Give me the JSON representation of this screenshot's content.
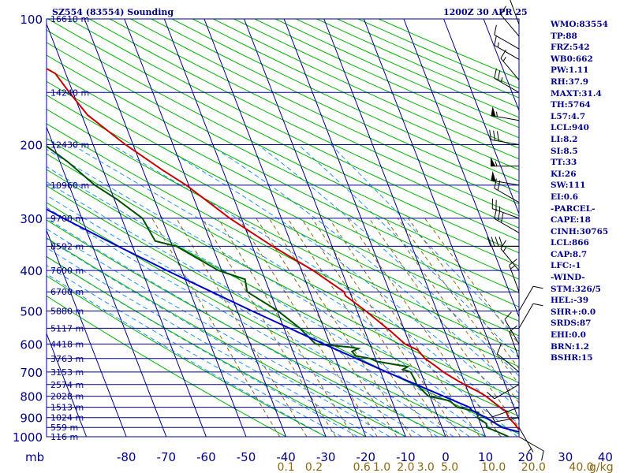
{
  "header": {
    "title": "SZ554 (83554) Sounding",
    "datetime": "1200Z 30 APR 25"
  },
  "indices": [
    "WMO:83554",
    "TP:88",
    "FRZ:542",
    "WB0:662",
    "PW:1.11",
    "RH:37.9",
    "MAXT:31.4",
    "TH:5764",
    "L57:4.7",
    "LCL:940",
    "LI:8.2",
    "SI:8.5",
    "TT:33",
    "KI:26",
    "SW:111",
    "EI:0.6",
    "-PARCEL-",
    "CAPE:18",
    "CINH:30765",
    "LCL:866",
    "CAP:8.7",
    "LFC:-1",
    "-WIND-",
    "STM:326/5",
    "HEL:-39",
    "SHR+:0.0",
    "SRDS:87",
    "EHI:0.0",
    "BRN:1.2",
    "BSHR:15"
  ],
  "colors": {
    "grid": "#00008b",
    "isotherm": "#00008b",
    "dry_adiabat": "#00b400",
    "moist_adiabat": "#1e90ff",
    "mixing_ratio": "#8b6914",
    "temperature": "#c80000",
    "dewpoint": "#005000",
    "parcel": "#0000c8",
    "axis_text": "#00008b",
    "mixing_text": "#8b6914"
  },
  "chart_data": {
    "type": "line",
    "title": "SZ554 (83554) Sounding",
    "pressure_label": "mb",
    "temperature_unit": "",
    "mixing_ratio_unit": "g/kg",
    "pressure_ticks": [
      100,
      200,
      300,
      400,
      500,
      600,
      700,
      800,
      900,
      1000
    ],
    "temperature_ticks": [
      -80,
      -70,
      -60,
      -50,
      -40,
      -30,
      -20,
      -10,
      0,
      10,
      20,
      30,
      40
    ],
    "temperature_tick_labels": [
      "-80",
      "-70",
      "-60",
      "-50",
      "-40",
      "-30",
      "-20",
      "-10",
      "0",
      "10",
      "20",
      "30",
      "40"
    ],
    "mixing_ratio_labels": [
      {
        "label": "0.1",
        "t": -40
      },
      {
        "label": "0.2",
        "t": -33
      },
      {
        "label": "0.6",
        "t": -21
      },
      {
        "label": "1.0",
        "t": -16
      },
      {
        "label": "2.0",
        "t": -10
      },
      {
        "label": "3.0",
        "t": -5
      },
      {
        "label": "5.0",
        "t": 1
      },
      {
        "label": "10.0",
        "t": 12
      },
      {
        "label": "20.0",
        "t": 22
      },
      {
        "label": "40.0",
        "t": 34
      },
      {
        "label": "g/kg",
        "t": 39
      }
    ],
    "height_labels": [
      {
        "p": 100,
        "label": "16610 m"
      },
      {
        "p": 150,
        "label": "14240 m"
      },
      {
        "p": 200,
        "label": "12430 m"
      },
      {
        "p": 250,
        "label": "10960 m"
      },
      {
        "p": 300,
        "label": "9700 m"
      },
      {
        "p": 350,
        "label": "8592 m"
      },
      {
        "p": 400,
        "label": "7600 m"
      },
      {
        "p": 450,
        "label": "6700 m"
      },
      {
        "p": 500,
        "label": "5880 m"
      },
      {
        "p": 550,
        "label": "5117 m"
      },
      {
        "p": 600,
        "label": "4418 m"
      },
      {
        "p": 650,
        "label": "3763 m"
      },
      {
        "p": 700,
        "label": "3153 m"
      },
      {
        "p": 750,
        "label": "2574 m"
      },
      {
        "p": 800,
        "label": "2028 m"
      },
      {
        "p": 850,
        "label": "1513 m"
      },
      {
        "p": 900,
        "label": "1024 m"
      },
      {
        "p": 950,
        "label": "559 m"
      },
      {
        "p": 1000,
        "label": "116 m"
      }
    ],
    "series": [
      {
        "name": "Temperature",
        "points": [
          [
            1000,
            20.8
          ],
          [
            960,
            19
          ],
          [
            930,
            18.5
          ],
          [
            900,
            17.6
          ],
          [
            870,
            17.6
          ],
          [
            850,
            16.5
          ],
          [
            800,
            14
          ],
          [
            780,
            12.6
          ],
          [
            750,
            9.7
          ],
          [
            720,
            7.3
          ],
          [
            700,
            5.7
          ],
          [
            680,
            4.5
          ],
          [
            650,
            2.4
          ],
          [
            620,
            1.4
          ],
          [
            600,
            -1.2
          ],
          [
            560,
            -3.5
          ],
          [
            500,
            -7.8
          ],
          [
            460,
            -11.4
          ],
          [
            450,
            -11.4
          ],
          [
            400,
            -17.1
          ],
          [
            350,
            -24.9
          ],
          [
            300,
            -32.9
          ],
          [
            250,
            -40.6
          ],
          [
            230,
            -45.1
          ],
          [
            200,
            -51.9
          ],
          [
            170,
            -58.5
          ],
          [
            150,
            -60.9
          ],
          [
            135,
            -62.6
          ],
          [
            130,
            -65.1
          ],
          [
            110,
            -73.1
          ],
          [
            103,
            -76.5
          ],
          [
            100,
            -77.5
          ]
        ]
      },
      {
        "name": "Dewpoint",
        "points": [
          [
            1000,
            15.8
          ],
          [
            970,
            13.2
          ],
          [
            950,
            11.2
          ],
          [
            930,
            11.5
          ],
          [
            900,
            9.8
          ],
          [
            875,
            10.6
          ],
          [
            860,
            8.1
          ],
          [
            850,
            5.7
          ],
          [
            820,
            4.5
          ],
          [
            800,
            -0.4
          ],
          [
            750,
            -2.2
          ],
          [
            730,
            -2.2
          ],
          [
            700,
            -2.5
          ],
          [
            690,
            -4.2
          ],
          [
            680,
            -2.7
          ],
          [
            660,
            -10
          ],
          [
            650,
            -11.3
          ],
          [
            640,
            -14.7
          ],
          [
            625,
            -15.2
          ],
          [
            615,
            -13.3
          ],
          [
            610,
            -15.5
          ],
          [
            600,
            -23.6
          ],
          [
            550,
            -26
          ],
          [
            500,
            -29.8
          ],
          [
            450,
            -35.7
          ],
          [
            420,
            -35
          ],
          [
            400,
            -40.8
          ],
          [
            350,
            -49
          ],
          [
            340,
            -53.8
          ],
          [
            300,
            -54.8
          ],
          [
            270,
            -59.4
          ],
          [
            250,
            -63.5
          ],
          [
            220,
            -68
          ],
          [
            200,
            -72.2
          ],
          [
            180,
            -75.5
          ],
          [
            170,
            -79.8
          ]
        ]
      },
      {
        "name": "Parcel",
        "points": [
          [
            1000,
            23
          ],
          [
            950,
            15
          ],
          [
            900,
            12
          ],
          [
            866,
            9.2
          ],
          [
            850,
            8.8
          ],
          [
            800,
            3.4
          ],
          [
            750,
            -2.3
          ],
          [
            700,
            -8.5
          ],
          [
            650,
            -14.8
          ],
          [
            600,
            -21.5
          ],
          [
            550,
            -28.6
          ],
          [
            500,
            -36.3
          ],
          [
            450,
            -44.6
          ],
          [
            400,
            -53.7
          ],
          [
            350,
            -63.6
          ],
          [
            300,
            -74.6
          ],
          [
            250,
            -86.9
          ],
          [
            200,
            -101
          ],
          [
            150,
            -117.7
          ],
          [
            120,
            -130
          ],
          [
            110,
            -135
          ]
        ]
      }
    ],
    "wind_barbs": [
      {
        "p": 103,
        "dir": 340,
        "kt": 10
      },
      {
        "p": 110,
        "dir": 320,
        "kt": 10
      },
      {
        "p": 118,
        "dir": 300,
        "kt": 10
      },
      {
        "p": 125,
        "dir": 300,
        "kt": 15
      },
      {
        "p": 140,
        "dir": 320,
        "kt": 15
      },
      {
        "p": 150,
        "dir": 300,
        "kt": 25
      },
      {
        "p": 175,
        "dir": 280,
        "kt": 55
      },
      {
        "p": 200,
        "dir": 280,
        "kt": 30
      },
      {
        "p": 225,
        "dir": 270,
        "kt": 55
      },
      {
        "p": 250,
        "dir": 280,
        "kt": 50
      },
      {
        "p": 275,
        "dir": 300,
        "kt": 20
      },
      {
        "p": 300,
        "dir": 290,
        "kt": 25
      },
      {
        "p": 325,
        "dir": 300,
        "kt": 30
      },
      {
        "p": 350,
        "dir": 270,
        "kt": 40
      },
      {
        "p": 400,
        "dir": 320,
        "kt": 15
      },
      {
        "p": 450,
        "dir": 340,
        "kt": 15
      },
      {
        "p": 500,
        "dir": 30,
        "kt": 10
      },
      {
        "p": 550,
        "dir": 30,
        "kt": 10
      },
      {
        "p": 600,
        "dir": 330,
        "kt": 10
      },
      {
        "p": 650,
        "dir": 340,
        "kt": 10
      },
      {
        "p": 700,
        "dir": 310,
        "kt": 10
      },
      {
        "p": 750,
        "dir": 240,
        "kt": 10
      },
      {
        "p": 850,
        "dir": 250,
        "kt": 10
      },
      {
        "p": 900,
        "dir": 260,
        "kt": 5
      },
      {
        "p": 950,
        "dir": 150,
        "kt": 5
      },
      {
        "p": 1000,
        "dir": 120,
        "kt": 10
      }
    ]
  }
}
